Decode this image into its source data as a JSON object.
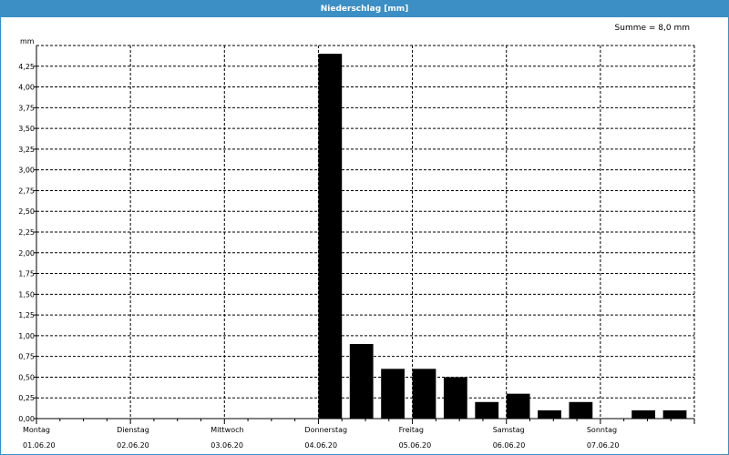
{
  "window": {
    "title": "Niederschlag [mm]"
  },
  "summary": {
    "text": "Summe = 8,0 mm"
  },
  "chart_data": {
    "type": "bar",
    "title": "Niederschlag [mm]",
    "ylabel": "mm",
    "ylim": [
      0,
      4.5
    ],
    "y_ticks": [
      "0,00",
      "0,25",
      "0,50",
      "0,75",
      "1,00",
      "1,25",
      "1,50",
      "1,75",
      "2,00",
      "2,25",
      "2,50",
      "2,75",
      "3,00",
      "3,25",
      "3,50",
      "3,75",
      "4,00",
      "4,25"
    ],
    "x_range_hours": [
      0,
      168
    ],
    "x_labels": [
      {
        "day": "Montag",
        "date": "01.06.20"
      },
      {
        "day": "Dienstag",
        "date": "02.06.20"
      },
      {
        "day": "Mittwoch",
        "date": "03.06.20"
      },
      {
        "day": "Donnerstag",
        "date": "04.06.20"
      },
      {
        "day": "Freitag",
        "date": "05.06.20"
      },
      {
        "day": "Samstag",
        "date": "06.06.20"
      },
      {
        "day": "Sonntag",
        "date": "07.06.20"
      }
    ],
    "bar_width_hours": 6,
    "bars": [
      {
        "x": 72,
        "value": 4.4
      },
      {
        "x": 80,
        "value": 0.9
      },
      {
        "x": 88,
        "value": 0.6
      },
      {
        "x": 96,
        "value": 0.6
      },
      {
        "x": 104,
        "value": 0.5
      },
      {
        "x": 112,
        "value": 0.2
      },
      {
        "x": 120,
        "value": 0.3
      },
      {
        "x": 128,
        "value": 0.1
      },
      {
        "x": 136,
        "value": 0.2
      },
      {
        "x": 152,
        "value": 0.1
      },
      {
        "x": 160,
        "value": 0.1
      }
    ],
    "grid": true,
    "bar_color": "#000000"
  }
}
